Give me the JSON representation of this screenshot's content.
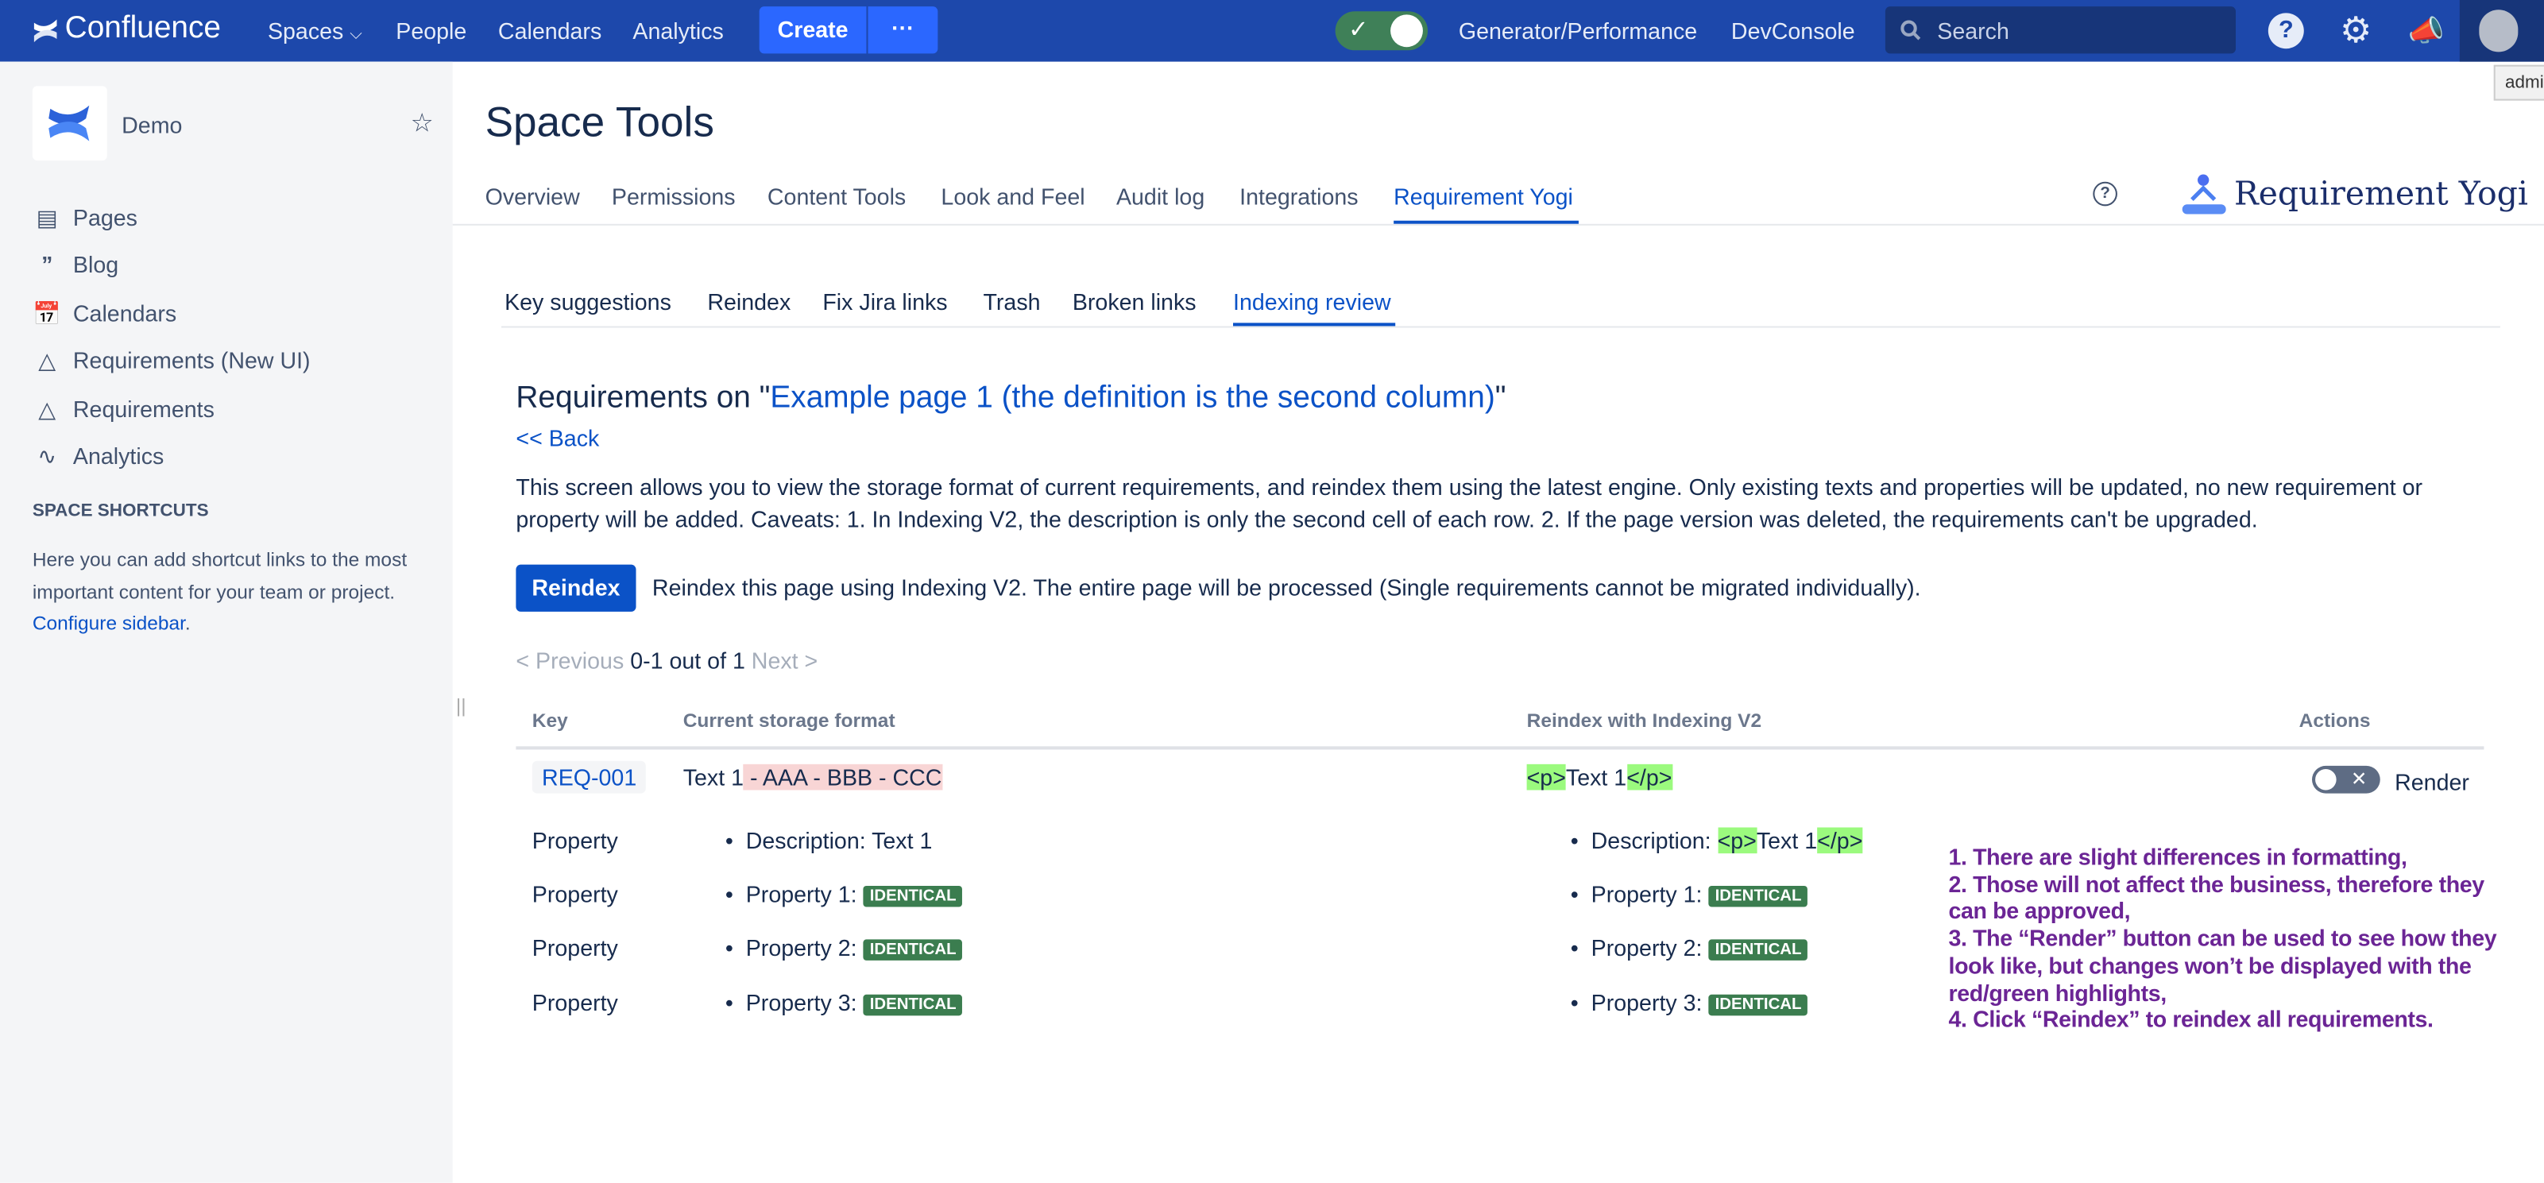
{
  "topbar": {
    "product": "Confluence",
    "nav": [
      "Spaces",
      "People",
      "Calendars",
      "Analytics"
    ],
    "create": "Create",
    "more": "···",
    "links": [
      "Generator/Performance",
      "DevConsole"
    ],
    "search_placeholder": "Search",
    "brand_color": "#1d48ab",
    "icons": [
      "help-icon",
      "settings-icon",
      "notifications-icon",
      "avatar-icon"
    ],
    "tooltip": "admi"
  },
  "sidebar": {
    "space_name": "Demo",
    "items": [
      {
        "label": "Pages",
        "icon": "pages-icon"
      },
      {
        "label": "Blog",
        "icon": "quote-icon"
      },
      {
        "label": "Calendars",
        "icon": "calendar-icon"
      },
      {
        "label": "Requirements (New UI)",
        "icon": "yogi-icon"
      },
      {
        "label": "Requirements",
        "icon": "yogi-icon"
      },
      {
        "label": "Analytics",
        "icon": "analytics-icon"
      }
    ],
    "shortcuts_heading": "SPACE SHORTCUTS",
    "shortcuts_text": "Here you can add shortcut links to the most important content for your team or project. ",
    "configure_link": "Configure sidebar",
    "configure_suffix": "."
  },
  "page": {
    "title": "Space Tools",
    "tabs": [
      "Overview",
      "Permissions",
      "Content Tools",
      "Look and Feel",
      "Audit log",
      "Integrations",
      "Requirement Yogi"
    ],
    "active_tab": "Requirement Yogi",
    "brand": "Requirement Yogi",
    "subtabs": [
      "Key suggestions",
      "Reindex",
      "Fix Jira links",
      "Trash",
      "Broken links",
      "Indexing review"
    ],
    "active_subtab": "Indexing review",
    "heading_prefix": "Requirements on \"",
    "heading_link": "Example page 1 (the definition is the second column)",
    "heading_suffix": "\"",
    "back": "<< Back",
    "description": "This screen allows you to view the storage format of current requirements, and reindex them using the latest engine. Only existing texts and properties will be updated, no new requirement or property will be added. Caveats: 1. In Indexing V2, the description is only the second cell of each row. 2. If the page version was deleted, the requirements can't be upgraded.",
    "reindex_button": "Reindex",
    "reindex_text": "Reindex this page using Indexing V2. The entire page will be processed (Single requirements cannot be migrated individually).",
    "pagination": {
      "previous": "< Previous",
      "range": "0-1 out of 1",
      "next": "Next >"
    }
  },
  "table": {
    "headers": [
      "Key",
      "Current storage format",
      "Reindex with Indexing V2",
      "Actions"
    ],
    "row": {
      "key": "REQ-001",
      "current_plain": "Text 1",
      "current_removed": " - AAA - BBB - CCC",
      "new_open": "<p>",
      "new_text": "Text 1",
      "new_close": "</p>",
      "render_label": "Render",
      "render_on": false
    },
    "properties": [
      {
        "label": "Property",
        "current": "Description: Text 1",
        "new_prefix": "Description: ",
        "new_open": "<p>",
        "new_text": "Text 1",
        "new_close": "</p>"
      },
      {
        "label": "Property",
        "current": "Property 1: ",
        "new": "Property 1: ",
        "badge": "IDENTICAL"
      },
      {
        "label": "Property",
        "current": "Property 2: ",
        "new": "Property 2: ",
        "badge": "IDENTICAL"
      },
      {
        "label": "Property",
        "current": "Property 3: ",
        "new": "Property 3: ",
        "badge": "IDENTICAL"
      }
    ]
  },
  "annotation": "1. There are slight differences in formatting,\n2. Those will not affect the business, therefore they can be approved,\n3. The “Render” button can be used to see how they look like, but changes won’t be displayed with the red/green highlights,\n4. Click “Reindex” to reindex all requirements."
}
